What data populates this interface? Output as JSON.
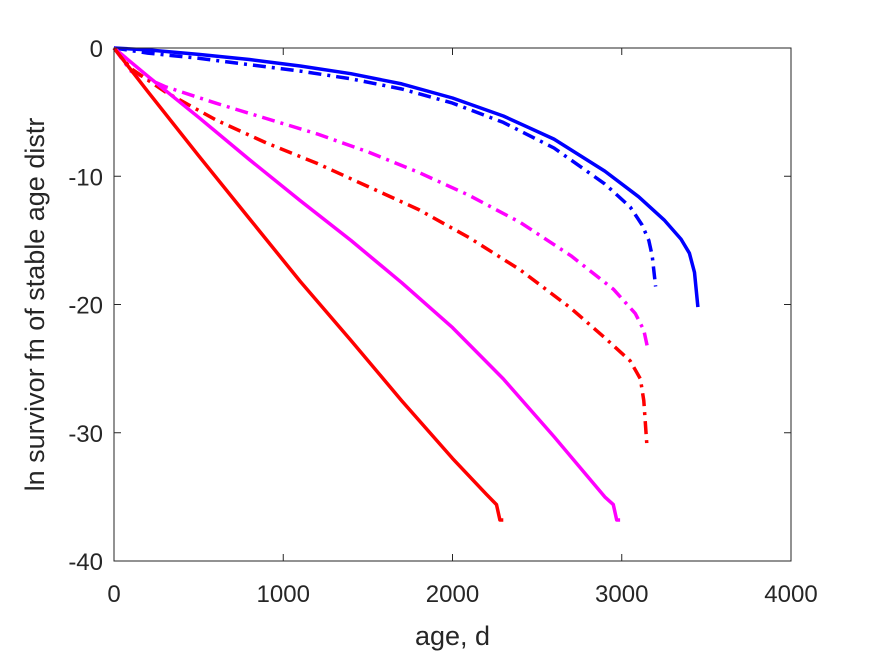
{
  "chart_data": {
    "type": "line",
    "title": "",
    "xlabel": "age, d",
    "ylabel": "ln survivor fn of stable age distr",
    "xlim": [
      0,
      4000
    ],
    "ylim": [
      -40,
      0
    ],
    "xticks": [
      0,
      1000,
      2000,
      3000,
      4000
    ],
    "xtick_labels": [
      "0",
      "1000",
      "2000",
      "3000",
      "4000"
    ],
    "yticks": [
      0,
      -10,
      -20,
      -30,
      -40
    ],
    "ytick_labels": [
      "0",
      "-10",
      "-20",
      "-30",
      "-40"
    ],
    "grid": false,
    "legend": "none",
    "series": [
      {
        "color": "#0000ff",
        "style": "solid",
        "x": [
          0,
          200,
          500,
          800,
          1100,
          1400,
          1700,
          2000,
          2300,
          2600,
          2900,
          3100,
          3250,
          3350,
          3400,
          3430,
          3450
        ],
        "y": [
          0,
          -0.15,
          -0.5,
          -0.9,
          -1.4,
          -2.0,
          -2.8,
          -3.9,
          -5.3,
          -7.1,
          -9.6,
          -11.6,
          -13.4,
          -14.9,
          -16.0,
          -17.5,
          -20.2
        ]
      },
      {
        "color": "#0000ff",
        "style": "dashdot",
        "x": [
          0,
          200,
          500,
          800,
          1100,
          1400,
          1700,
          2000,
          2300,
          2600,
          2900,
          3050,
          3120,
          3160,
          3180,
          3200
        ],
        "y": [
          0,
          -0.4,
          -0.8,
          -1.3,
          -1.8,
          -2.4,
          -3.2,
          -4.3,
          -5.8,
          -7.8,
          -10.6,
          -12.4,
          -13.8,
          -15.0,
          -16.2,
          -18.6
        ]
      },
      {
        "color": "#ff00ff",
        "style": "dashdot",
        "x": [
          0,
          100,
          300,
          600,
          900,
          1200,
          1500,
          1800,
          2100,
          2400,
          2700,
          2950,
          3080,
          3130,
          3150
        ],
        "y": [
          0,
          -1.8,
          -3.0,
          -4.3,
          -5.5,
          -6.7,
          -8.1,
          -9.7,
          -11.5,
          -13.6,
          -16.2,
          -18.8,
          -20.7,
          -22.0,
          -23.2
        ]
      },
      {
        "color": "#ff0000",
        "style": "dashdot",
        "x": [
          0,
          100,
          300,
          600,
          900,
          1200,
          1500,
          1800,
          2100,
          2400,
          2700,
          2900,
          3050,
          3110,
          3130,
          3150
        ],
        "y": [
          0,
          -1.6,
          -3.4,
          -5.6,
          -7.4,
          -9.0,
          -10.8,
          -12.6,
          -14.8,
          -17.3,
          -20.3,
          -22.6,
          -24.4,
          -25.8,
          -27.5,
          -31.2
        ]
      },
      {
        "color": "#ff00ff",
        "style": "solid",
        "x": [
          0,
          200,
          500,
          800,
          1100,
          1400,
          1700,
          2000,
          2300,
          2600,
          2900,
          2950,
          2970,
          2990
        ],
        "y": [
          0,
          -2.2,
          -5.4,
          -8.7,
          -11.9,
          -15.0,
          -18.3,
          -21.8,
          -25.8,
          -30.3,
          -35.0,
          -35.6,
          -36.8,
          -36.8
        ]
      },
      {
        "color": "#ff0000",
        "style": "solid",
        "x": [
          0,
          200,
          500,
          800,
          1100,
          1400,
          1700,
          2000,
          2200,
          2260,
          2280,
          2300
        ],
        "y": [
          0,
          -3.4,
          -8.4,
          -13.3,
          -18.2,
          -22.8,
          -27.5,
          -32.0,
          -34.8,
          -35.6,
          -36.8,
          -36.8
        ]
      }
    ]
  }
}
